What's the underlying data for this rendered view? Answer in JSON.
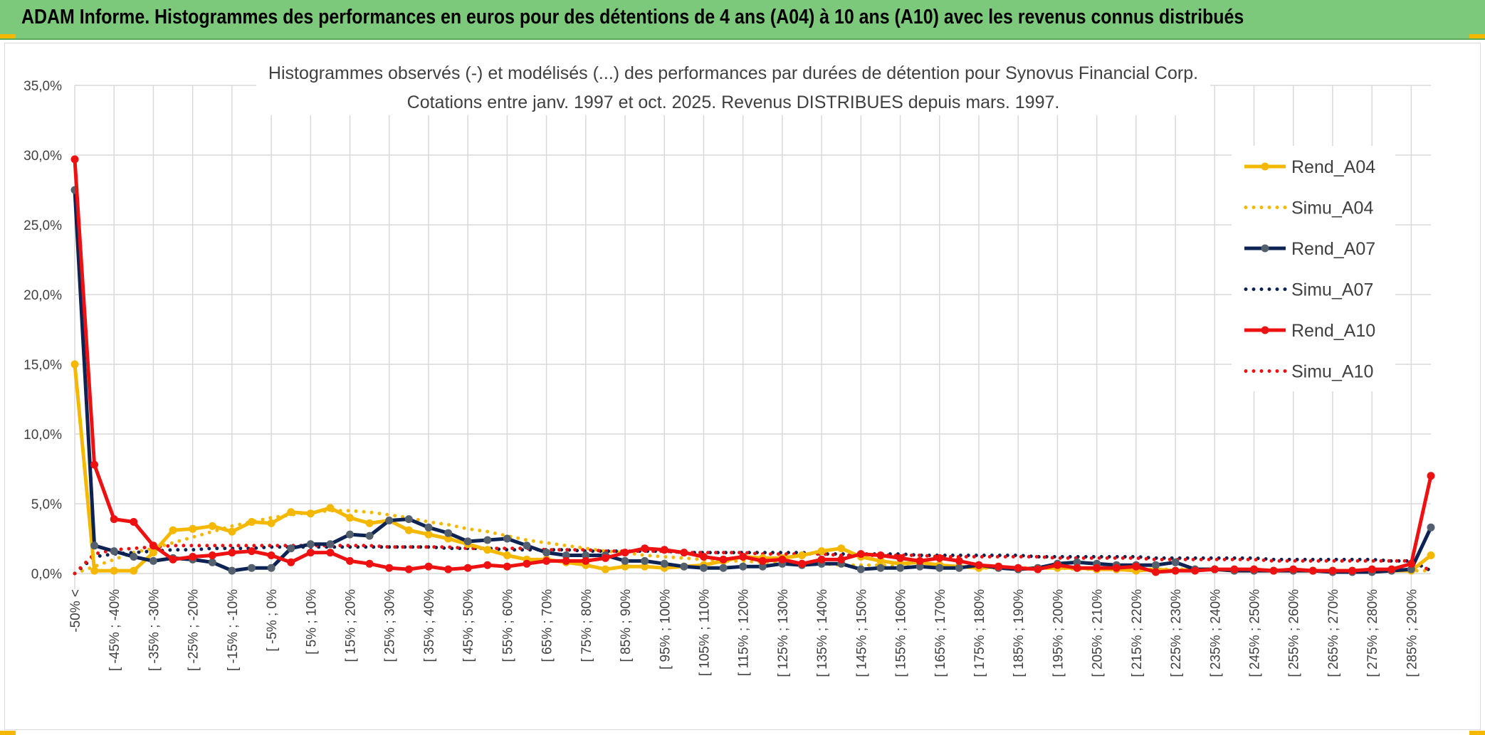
{
  "header": {
    "title": "ADAM Informe. Histogrammes des performances en euros pour des détentions de 4 ans (A04) à 10 ans (A10) avec les revenus connus distribués"
  },
  "colors": {
    "header_bg": "#7dc97b",
    "header_accent": "#f5b800",
    "a04": "#f5b800",
    "a07": "#0d2353",
    "a07_marker": "#55606e",
    "a10": "#ee1111"
  },
  "chart_data": {
    "type": "line",
    "title_lines": [
      "Histogrammes observés (-) et modélisés (...) des performances par durées de détention pour Synovus Financial Corp.",
      "Cotations entre janv. 1997 et oct. 2025. Revenus DISTRIBUES depuis mars. 1997."
    ],
    "ylim": [
      0,
      0.35
    ],
    "yticks": [
      0,
      0.05,
      0.1,
      0.15,
      0.2,
      0.25,
      0.3,
      0.35
    ],
    "ytick_labels": [
      "0,0%",
      "5,0%",
      "10,0%",
      "15,0%",
      "20,0%",
      "25,0%",
      "30,0%",
      "35,0%"
    ],
    "x_count": 70,
    "x_tick_labels": [
      {
        "i": 0,
        "label": "-50% <"
      },
      {
        "i": 2,
        "label": "[ -45% ; -40%"
      },
      {
        "i": 4,
        "label": "[ -35% ; -30%"
      },
      {
        "i": 6,
        "label": "[ -25% ; -20%"
      },
      {
        "i": 8,
        "label": "[ -15% ; -10%"
      },
      {
        "i": 10,
        "label": "[ -5% ; 0%"
      },
      {
        "i": 12,
        "label": "[ 5% ; 10%"
      },
      {
        "i": 14,
        "label": "[ 15% ; 20%"
      },
      {
        "i": 16,
        "label": "[ 25% ; 30%"
      },
      {
        "i": 18,
        "label": "[ 35% ; 40%"
      },
      {
        "i": 20,
        "label": "[ 45% ; 50%"
      },
      {
        "i": 22,
        "label": "[ 55% ; 60%"
      },
      {
        "i": 24,
        "label": "[ 65% ; 70%"
      },
      {
        "i": 26,
        "label": "[ 75% ; 80%"
      },
      {
        "i": 28,
        "label": "[ 85% ; 90%"
      },
      {
        "i": 30,
        "label": "[ 95% ; 100%"
      },
      {
        "i": 32,
        "label": "[ 105% ; 110%"
      },
      {
        "i": 34,
        "label": "[ 115% ; 120%"
      },
      {
        "i": 36,
        "label": "[ 125% ; 130%"
      },
      {
        "i": 38,
        "label": "[ 135% ; 140%"
      },
      {
        "i": 40,
        "label": "[ 145% ; 150%"
      },
      {
        "i": 42,
        "label": "[ 155% ; 160%"
      },
      {
        "i": 44,
        "label": "[ 165% ; 170%"
      },
      {
        "i": 46,
        "label": "[ 175% ; 180%"
      },
      {
        "i": 48,
        "label": "[ 185% ; 190%"
      },
      {
        "i": 50,
        "label": "[ 195% ; 200%"
      },
      {
        "i": 52,
        "label": "[ 205% ; 210%"
      },
      {
        "i": 54,
        "label": "[ 215% ; 220%"
      },
      {
        "i": 56,
        "label": "[ 225% ; 230%"
      },
      {
        "i": 58,
        "label": "[ 235% ; 240%"
      },
      {
        "i": 60,
        "label": "[ 245% ; 250%"
      },
      {
        "i": 62,
        "label": "[ 255% ; 260%"
      },
      {
        "i": 64,
        "label": "[ 265% ; 270%"
      },
      {
        "i": 66,
        "label": "[ 275% ; 280%"
      },
      {
        "i": 68,
        "label": "[ 285% ; 290%"
      }
    ],
    "grid": true,
    "legend_placement": "right",
    "series": [
      {
        "name": "Rend_A04",
        "style": "solid",
        "marker": true,
        "color": "#f5b800",
        "values": [
          0.15,
          0.002,
          0.002,
          0.002,
          0.015,
          0.031,
          0.032,
          0.034,
          0.03,
          0.037,
          0.036,
          0.044,
          0.043,
          0.047,
          0.04,
          0.036,
          0.038,
          0.031,
          0.028,
          0.025,
          0.021,
          0.017,
          0.013,
          0.01,
          0.01,
          0.008,
          0.006,
          0.003,
          0.005,
          0.005,
          0.004,
          0.005,
          0.006,
          0.009,
          0.012,
          0.011,
          0.011,
          0.013,
          0.016,
          0.018,
          0.012,
          0.009,
          0.007,
          0.008,
          0.006,
          0.005,
          0.004,
          0.005,
          0.003,
          0.004,
          0.004,
          0.004,
          0.003,
          0.003,
          0.002,
          0.003,
          0.002,
          0.003,
          0.003,
          0.002,
          0.002,
          0.002,
          0.002,
          0.002,
          0.002,
          0.002,
          0.002,
          0.002,
          0.002,
          0.013
        ]
      },
      {
        "name": "Simu_A04",
        "style": "dotted",
        "marker": false,
        "color": "#f5b800",
        "values": [
          0.0,
          0.005,
          0.01,
          0.015,
          0.018,
          0.022,
          0.026,
          0.03,
          0.034,
          0.037,
          0.04,
          0.042,
          0.044,
          0.045,
          0.045,
          0.044,
          0.042,
          0.04,
          0.037,
          0.035,
          0.032,
          0.03,
          0.027,
          0.024,
          0.022,
          0.02,
          0.018,
          0.016,
          0.015,
          0.013,
          0.012,
          0.011,
          0.01,
          0.009,
          0.009,
          0.008,
          0.008,
          0.007,
          0.007,
          0.006,
          0.006,
          0.006,
          0.005,
          0.005,
          0.005,
          0.005,
          0.004,
          0.004,
          0.004,
          0.004,
          0.004,
          0.003,
          0.003,
          0.003,
          0.003,
          0.003,
          0.003,
          0.003,
          0.003,
          0.002,
          0.002,
          0.002,
          0.002,
          0.002,
          0.002,
          0.002,
          0.002,
          0.002,
          0.002,
          0.002
        ]
      },
      {
        "name": "Rend_A07",
        "style": "solid",
        "marker": true,
        "color": "#0d2353",
        "values": [
          0.275,
          0.02,
          0.016,
          0.012,
          0.009,
          0.011,
          0.01,
          0.008,
          0.002,
          0.004,
          0.004,
          0.018,
          0.021,
          0.021,
          0.028,
          0.027,
          0.038,
          0.039,
          0.033,
          0.029,
          0.023,
          0.024,
          0.025,
          0.02,
          0.015,
          0.013,
          0.013,
          0.013,
          0.009,
          0.009,
          0.007,
          0.005,
          0.004,
          0.004,
          0.005,
          0.005,
          0.007,
          0.006,
          0.007,
          0.007,
          0.003,
          0.004,
          0.004,
          0.005,
          0.004,
          0.004,
          0.006,
          0.004,
          0.003,
          0.004,
          0.007,
          0.008,
          0.007,
          0.006,
          0.006,
          0.006,
          0.008,
          0.003,
          0.003,
          0.002,
          0.002,
          0.002,
          0.002,
          0.002,
          0.001,
          0.001,
          0.001,
          0.002,
          0.003,
          0.033
        ]
      },
      {
        "name": "Simu_A07",
        "style": "dotted",
        "marker": false,
        "color": "#0d2353",
        "values": [
          0.0,
          0.012,
          0.014,
          0.015,
          0.016,
          0.017,
          0.017,
          0.018,
          0.018,
          0.018,
          0.019,
          0.019,
          0.019,
          0.019,
          0.019,
          0.019,
          0.019,
          0.019,
          0.019,
          0.018,
          0.018,
          0.018,
          0.017,
          0.017,
          0.017,
          0.017,
          0.016,
          0.016,
          0.016,
          0.016,
          0.016,
          0.015,
          0.015,
          0.015,
          0.015,
          0.015,
          0.015,
          0.015,
          0.014,
          0.014,
          0.014,
          0.014,
          0.014,
          0.013,
          0.013,
          0.013,
          0.013,
          0.013,
          0.013,
          0.012,
          0.012,
          0.012,
          0.012,
          0.012,
          0.012,
          0.011,
          0.011,
          0.011,
          0.011,
          0.011,
          0.011,
          0.01,
          0.01,
          0.01,
          0.01,
          0.01,
          0.01,
          0.009,
          0.009,
          0.002
        ]
      },
      {
        "name": "Rend_A10",
        "style": "solid",
        "marker": true,
        "color": "#ee1111",
        "values": [
          0.297,
          0.078,
          0.039,
          0.037,
          0.02,
          0.01,
          0.012,
          0.013,
          0.015,
          0.016,
          0.013,
          0.008,
          0.015,
          0.015,
          0.009,
          0.007,
          0.004,
          0.003,
          0.005,
          0.003,
          0.004,
          0.006,
          0.005,
          0.007,
          0.009,
          0.009,
          0.009,
          0.011,
          0.015,
          0.018,
          0.017,
          0.015,
          0.012,
          0.01,
          0.012,
          0.009,
          0.01,
          0.007,
          0.01,
          0.01,
          0.014,
          0.013,
          0.011,
          0.009,
          0.011,
          0.009,
          0.006,
          0.005,
          0.004,
          0.003,
          0.006,
          0.004,
          0.004,
          0.004,
          0.005,
          0.001,
          0.002,
          0.002,
          0.003,
          0.003,
          0.003,
          0.002,
          0.003,
          0.002,
          0.002,
          0.002,
          0.003,
          0.003,
          0.007,
          0.07
        ]
      },
      {
        "name": "Simu_A10",
        "style": "dotted",
        "marker": false,
        "color": "#ee1111",
        "values": [
          0.0,
          0.014,
          0.017,
          0.018,
          0.019,
          0.02,
          0.02,
          0.02,
          0.02,
          0.02,
          0.02,
          0.02,
          0.02,
          0.02,
          0.02,
          0.02,
          0.019,
          0.019,
          0.019,
          0.019,
          0.018,
          0.018,
          0.018,
          0.018,
          0.017,
          0.017,
          0.017,
          0.016,
          0.016,
          0.016,
          0.016,
          0.015,
          0.015,
          0.015,
          0.015,
          0.014,
          0.014,
          0.014,
          0.014,
          0.013,
          0.013,
          0.013,
          0.013,
          0.013,
          0.012,
          0.012,
          0.012,
          0.012,
          0.012,
          0.012,
          0.011,
          0.011,
          0.011,
          0.011,
          0.011,
          0.01,
          0.01,
          0.01,
          0.01,
          0.01,
          0.01,
          0.009,
          0.009,
          0.009,
          0.009,
          0.009,
          0.009,
          0.009,
          0.009,
          0.002
        ]
      }
    ]
  }
}
